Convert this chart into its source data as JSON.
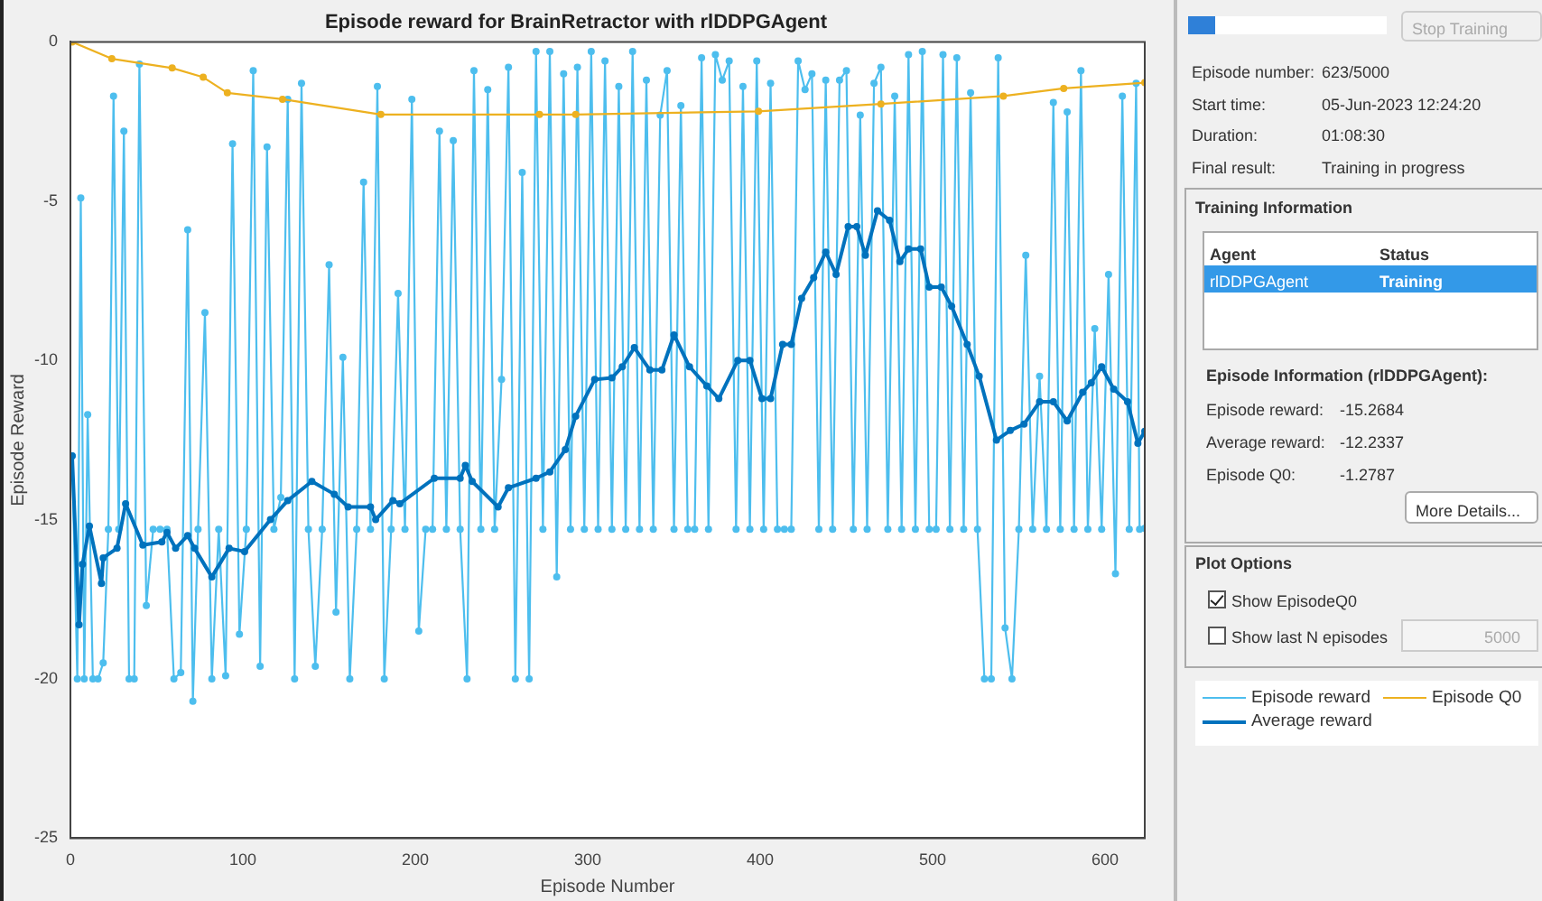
{
  "chart_data": [
    {
      "type": "line",
      "title": "Episode reward for BrainRetractor with rlDDPGAgent",
      "xlabel": "Episode Number",
      "ylabel": "Episode Reward",
      "xlim": [
        0,
        623
      ],
      "xticks": [
        0,
        100,
        200,
        300,
        400,
        500,
        600
      ],
      "ylim": [
        -25,
        0
      ],
      "yticks": [
        -25,
        -20,
        -15,
        -10,
        -5,
        0
      ],
      "grid": false,
      "legend": "right",
      "marker": "circle",
      "line_style": "solid",
      "series": [
        {
          "name": "Episode reward",
          "color": "#4dbeee",
          "x": [
            1,
            4,
            6,
            8,
            10,
            13,
            16,
            19,
            22,
            25,
            28,
            31,
            34,
            37,
            40,
            44,
            48,
            52,
            56,
            60,
            64,
            68,
            71,
            74,
            78,
            82,
            86,
            90,
            94,
            98,
            102,
            106,
            110,
            114,
            118,
            122,
            126,
            130,
            134,
            138,
            142,
            146,
            150,
            154,
            158,
            162,
            166,
            170,
            174,
            178,
            182,
            186,
            190,
            194,
            198,
            202,
            206,
            210,
            214,
            218,
            222,
            226,
            230,
            234,
            238,
            242,
            246,
            250,
            254,
            258,
            262,
            266,
            270,
            274,
            278,
            282,
            286,
            290,
            294,
            298,
            302,
            306,
            310,
            314,
            318,
            322,
            326,
            330,
            334,
            338,
            342,
            346,
            350,
            354,
            358,
            362,
            366,
            370,
            374,
            378,
            382,
            386,
            390,
            394,
            398,
            402,
            406,
            410,
            414,
            418,
            422,
            426,
            430,
            434,
            438,
            442,
            446,
            450,
            454,
            458,
            462,
            466,
            470,
            474,
            478,
            482,
            486,
            490,
            494,
            498,
            502,
            506,
            510,
            514,
            518,
            522,
            526,
            530,
            534,
            538,
            542,
            546,
            550,
            554,
            558,
            562,
            566,
            570,
            574,
            578,
            582,
            586,
            590,
            594,
            598,
            602,
            606,
            610,
            614,
            618,
            620,
            623
          ],
          "values": [
            -13,
            -20,
            -4.9,
            -20,
            -11.7,
            -20,
            -20,
            -19.5,
            -15.3,
            -1.7,
            -15.3,
            -2.8,
            -20,
            -20,
            -0.7,
            -17.7,
            -15.3,
            -15.3,
            -15.3,
            -20,
            -19.8,
            -5.9,
            -20.7,
            -15.3,
            -8.5,
            -20,
            -15.3,
            -19.9,
            -3.2,
            -18.6,
            -15.3,
            -0.9,
            -19.6,
            -3.3,
            -15.3,
            -14.3,
            -1.8,
            -20,
            -1.3,
            -15.3,
            -19.6,
            -15.3,
            -7,
            -17.9,
            -9.9,
            -20,
            -15.3,
            -4.4,
            -15.3,
            -1.4,
            -20,
            -15.3,
            -7.9,
            -15.3,
            -1.8,
            -18.5,
            -15.3,
            -15.3,
            -2.8,
            -15.3,
            -3.1,
            -15.3,
            -20,
            -0.9,
            -15.3,
            -1.5,
            -15.3,
            -10.6,
            -0.8,
            -20,
            -4.1,
            -20,
            -0.3,
            -15.3,
            -0.3,
            -16.8,
            -1,
            -15.3,
            -0.8,
            -15.3,
            -0.3,
            -15.3,
            -0.6,
            -15.3,
            -1.4,
            -15.3,
            -0.3,
            -15.3,
            -1.2,
            -15.3,
            -2.3,
            -0.9,
            -15.3,
            -2,
            -15.3,
            -15.3,
            -0.5,
            -15.3,
            -0.4,
            -1.2,
            -0.6,
            -15.3,
            -1.4,
            -15.3,
            -0.6,
            -15.3,
            -1.3,
            -15.3,
            -15.3,
            -15.3,
            -0.6,
            -1.5,
            -1,
            -15.3,
            -1.2,
            -15.3,
            -1.2,
            -0.9,
            -15.3,
            -2.3,
            -15.3,
            -1.3,
            -0.8,
            -15.3,
            -1.7,
            -15.3,
            -0.4,
            -15.3,
            -0.3,
            -15.3,
            -15.3,
            -0.4,
            -15.3,
            -0.5,
            -15.3,
            -1.6,
            -15.3,
            -20,
            -20,
            -0.5,
            -18.4,
            -20,
            -15.3,
            -6.7,
            -15.3,
            -10.5,
            -15.3,
            -1.9,
            -15.3,
            -2.2,
            -15.3,
            -0.9,
            -15.3,
            -9,
            -15.3,
            -7.3,
            -16.7,
            -1.7,
            -15.3,
            -1.3,
            -15.3,
            -15.27
          ]
        },
        {
          "name": "Episode Q0",
          "color": "#edb120",
          "x": [
            1,
            24,
            59,
            77,
            91,
            123,
            180,
            272,
            293,
            399,
            470,
            541,
            576,
            623
          ],
          "values": [
            0,
            -0.53,
            -0.82,
            -1.11,
            -1.6,
            -1.8,
            -2.28,
            -2.28,
            -2.28,
            -2.18,
            -1.95,
            -1.7,
            -1.46,
            -1.28
          ]
        },
        {
          "name": "Average reward",
          "color": "#0072bd",
          "x": [
            1,
            5,
            7,
            11,
            18,
            19,
            27,
            32,
            42,
            53,
            56,
            61,
            68,
            72,
            82,
            92,
            101,
            116,
            126,
            140,
            153,
            161,
            174,
            177,
            187,
            191,
            211,
            226,
            229,
            233,
            248,
            254,
            270,
            278,
            287,
            293,
            304,
            314,
            320,
            327,
            336,
            343,
            350,
            359,
            369,
            376,
            387,
            394,
            401,
            406,
            413,
            418,
            424,
            431,
            438,
            444,
            451,
            456,
            461,
            468,
            475,
            481,
            486,
            493,
            498,
            505,
            511,
            520,
            527,
            537,
            545,
            553,
            562,
            570,
            578,
            587,
            592,
            598,
            605,
            613,
            619,
            623
          ],
          "values": [
            -13,
            -18.3,
            -16.4,
            -15.2,
            -17,
            -16.2,
            -15.9,
            -14.5,
            -15.8,
            -15.7,
            -15.4,
            -15.9,
            -15.5,
            -15.9,
            -16.8,
            -15.9,
            -16,
            -15,
            -14.4,
            -13.8,
            -14.2,
            -14.6,
            -14.6,
            -15,
            -14.4,
            -14.5,
            -13.7,
            -13.7,
            -13.3,
            -13.8,
            -14.6,
            -14,
            -13.7,
            -13.5,
            -12.8,
            -11.75,
            -10.6,
            -10.55,
            -10.2,
            -9.6,
            -10.3,
            -10.3,
            -9.2,
            -10.2,
            -10.8,
            -11.2,
            -10,
            -10,
            -11.2,
            -11.2,
            -9.5,
            -9.5,
            -8.05,
            -7.4,
            -6.6,
            -7.3,
            -5.8,
            -5.8,
            -6.7,
            -5.3,
            -5.6,
            -6.9,
            -6.5,
            -6.5,
            -7.7,
            -7.7,
            -8.3,
            -9.5,
            -10.5,
            -12.5,
            -12.2,
            -12,
            -11.3,
            -11.3,
            -11.9,
            -11,
            -10.7,
            -10.2,
            -10.9,
            -11.3,
            -12.6,
            -12.23
          ]
        }
      ]
    },
    {
      "type": "other",
      "annotations": [
        "Stop Training",
        "Episode number:",
        "623/5000",
        "Start time:",
        "05-Jun-2023 12:24:20",
        "Duration:",
        "01:08:30",
        "Final result:",
        "Training in progress",
        "Training Information",
        "Agent",
        "Status",
        "rlDDPGAgent",
        "Training",
        "Episode Information (rlDDPGAgent):",
        "Episode reward:",
        "-15.2684",
        "Average reward:",
        "-12.2337",
        "Episode Q0:",
        "-1.2787",
        "More Details...",
        "Plot Options",
        "Show EpisodeQ0",
        "Show last N episodes",
        "5000"
      ]
    }
  ]
}
